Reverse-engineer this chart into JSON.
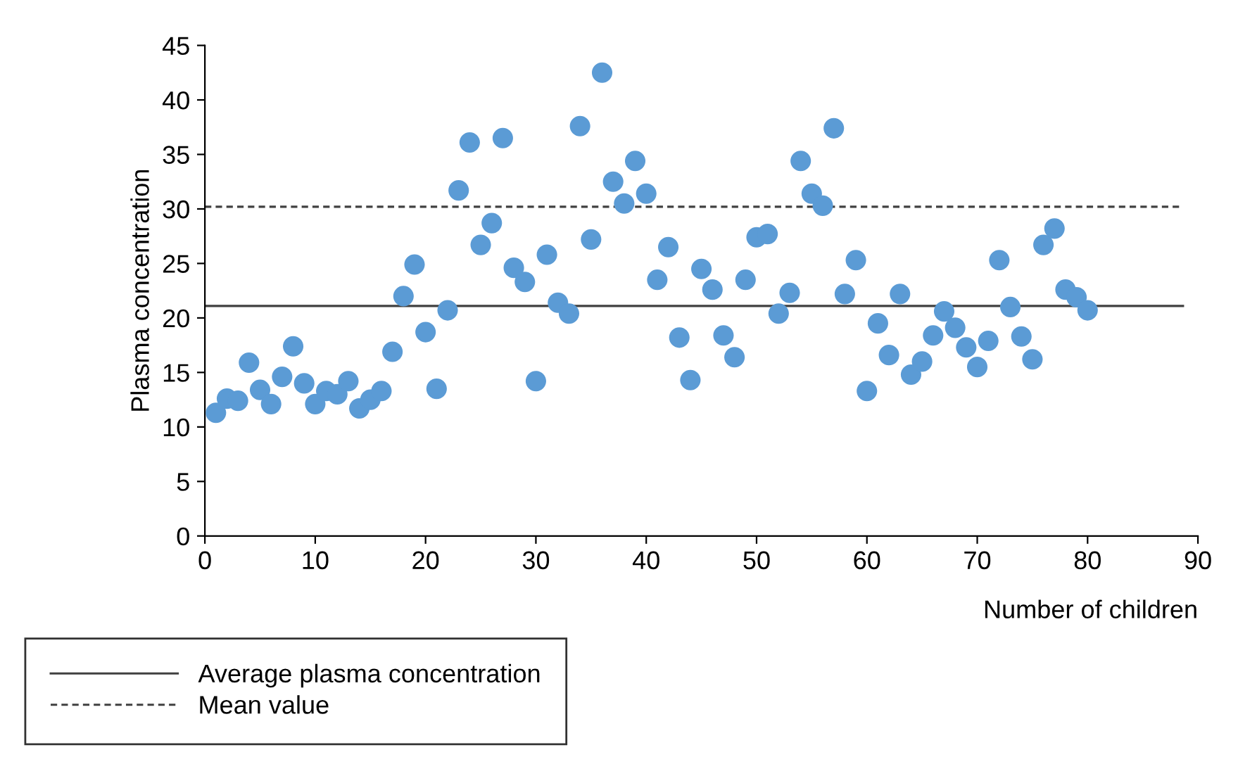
{
  "chart_data": {
    "type": "scatter",
    "xlabel": "Number of children",
    "ylabel": "Plasma concentration",
    "x": [
      1,
      2,
      3,
      4,
      5,
      6,
      7,
      8,
      9,
      10,
      11,
      12,
      13,
      14,
      15,
      16,
      17,
      18,
      19,
      20,
      21,
      22,
      23,
      24,
      25,
      26,
      27,
      28,
      29,
      30,
      31,
      32,
      33,
      34,
      35,
      36,
      37,
      38,
      39,
      40,
      41,
      42,
      43,
      44,
      45,
      46,
      47,
      48,
      49,
      50,
      51,
      52,
      53,
      54,
      55,
      56,
      57,
      58,
      59,
      60,
      61,
      62,
      63,
      64,
      65,
      66,
      67,
      68,
      69,
      70,
      71,
      72,
      73,
      74,
      75,
      76,
      77,
      78,
      79,
      80
    ],
    "series": [
      {
        "color": "#5b9bd5",
        "values": [
          11.3,
          12.6,
          12.4,
          15.9,
          13.4,
          12.1,
          14.6,
          17.4,
          14.0,
          12.1,
          13.3,
          13.0,
          14.2,
          11.7,
          12.5,
          13.3,
          16.9,
          22.0,
          24.9,
          18.7,
          13.5,
          20.7,
          31.7,
          36.1,
          26.7,
          28.7,
          36.5,
          24.6,
          23.3,
          14.2,
          25.8,
          21.4,
          20.4,
          37.6,
          27.2,
          42.5,
          32.5,
          30.5,
          34.4,
          31.4,
          23.5,
          26.5,
          18.2,
          14.3,
          24.5,
          22.6,
          18.4,
          16.4,
          23.5,
          27.4,
          27.7,
          20.4,
          22.3,
          34.4,
          31.4,
          30.3,
          37.4,
          22.2,
          25.3,
          13.3,
          19.5,
          16.6,
          22.2,
          14.8,
          16.0,
          18.4,
          20.6,
          19.1,
          17.3,
          15.5,
          17.9,
          25.3,
          21.0,
          18.3,
          16.2,
          26.7,
          28.2,
          22.6,
          21.9,
          20.7
        ]
      }
    ],
    "marker": "circle",
    "xlim": [
      0,
      90
    ],
    "xticks": [
      0,
      10,
      20,
      30,
      40,
      50,
      60,
      70,
      80,
      90
    ],
    "ylim": [
      0,
      45
    ],
    "yticks": [
      0,
      5,
      10,
      15,
      20,
      25,
      30,
      35,
      40,
      45
    ],
    "ref_lines": [
      {
        "axis": "y",
        "value": 21.1,
        "label": "Average plasma concentration",
        "color": "#404040",
        "line_style": "solid"
      },
      {
        "axis": "y",
        "value": 30.2,
        "label": "Mean value",
        "color": "#404040",
        "line_style": "dashed"
      }
    ],
    "legend": "bottom left",
    "grid": false
  }
}
